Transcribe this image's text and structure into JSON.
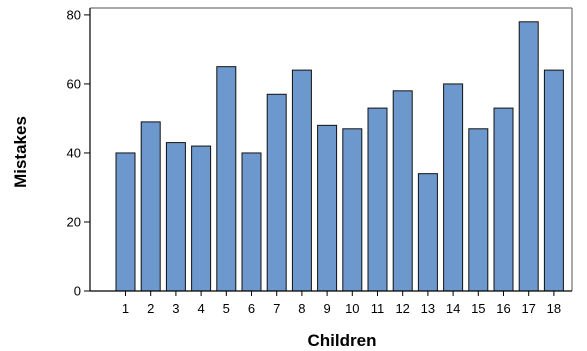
{
  "chart_data": {
    "type": "bar",
    "title": "",
    "xlabel": "Children",
    "ylabel": "Mistakes",
    "categories": [
      "1",
      "2",
      "3",
      "4",
      "5",
      "6",
      "7",
      "8",
      "9",
      "10",
      "11",
      "12",
      "13",
      "14",
      "15",
      "16",
      "17",
      "18"
    ],
    "values": [
      40,
      49,
      43,
      42,
      65,
      40,
      57,
      64,
      48,
      47,
      53,
      58,
      34,
      60,
      47,
      53,
      78,
      64
    ],
    "ylim": [
      0,
      82
    ],
    "yticks": [
      0,
      20,
      40,
      60,
      80
    ],
    "grid": false,
    "bar_color": "#6d98cd",
    "bar_edge_color": "#111111"
  }
}
